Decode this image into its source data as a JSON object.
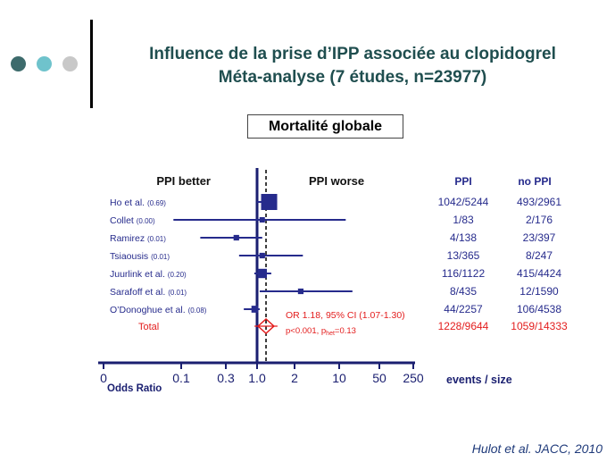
{
  "header": {
    "title_line1": "Influence de la prise d’IPP associée au clopidogrel",
    "title_line2": "Méta-analyse (7 études, n=23977)",
    "box_label": "Mortalité globale",
    "citation": "Hulot et al. JACC, 2010"
  },
  "decor": {
    "dot_colors": [
      "#3d6b6c",
      "#6fc3cc",
      "#c8c8c8"
    ]
  },
  "colors": {
    "navy": "#262b8c",
    "red": "#e31d1d",
    "dark": "#1a1f70"
  },
  "chart_data": {
    "type": "forest",
    "label_left": "PPI better",
    "label_right": "PPI worse",
    "xlabel": "Odds Ratio",
    "x_ticks": [
      0,
      0.1,
      0.3,
      1.0,
      2,
      10,
      50,
      250
    ],
    "x_tick_labels": [
      "0",
      "0.1",
      "0.3",
      "1.0",
      "2",
      "10",
      "50",
      "250"
    ],
    "reference_line": 1.0,
    "pooled_line": 1.18,
    "columns": {
      "events_header_ppi": "PPI",
      "events_header_noppi": "no PPI",
      "footer": "events / size"
    },
    "studies": [
      {
        "name": "Ho et al.",
        "weight": "(0.69)",
        "or": 1.25,
        "ci_low": 1.0,
        "ci_high": 1.45,
        "ppi": "1042/5244",
        "noppi": "493/2961"
      },
      {
        "name": "Collet",
        "weight": "(0.00)",
        "or": 1.1,
        "ci_low": 0.09,
        "ci_high": 13,
        "ppi": "1/83",
        "noppi": "2/176"
      },
      {
        "name": "Ramirez",
        "weight": "(0.01)",
        "or": 0.45,
        "ci_low": 0.16,
        "ci_high": 1.1,
        "ppi": "4/138",
        "noppi": "23/397"
      },
      {
        "name": "Tsiaousis",
        "weight": "(0.01)",
        "or": 1.1,
        "ci_low": 0.5,
        "ci_high": 2.7,
        "ppi": "13/365",
        "noppi": "8/247"
      },
      {
        "name": "Juurlink et al.",
        "weight": "(0.20)",
        "or": 1.1,
        "ci_low": 0.9,
        "ci_high": 1.3,
        "ppi": "116/1122",
        "noppi": "415/4424"
      },
      {
        "name": "Sarafoff et al.",
        "weight": "(0.01)",
        "or": 2.5,
        "ci_low": 1.05,
        "ci_high": 17,
        "ppi": "8/435",
        "noppi": "12/1590"
      },
      {
        "name": "O’Donoghue et al.",
        "weight": "(0.08)",
        "or": 0.92,
        "ci_low": 0.6,
        "ci_high": 1.05,
        "ppi": "44/2257",
        "noppi": "106/4538"
      }
    ],
    "total": {
      "name": "Total",
      "or": 1.18,
      "ci_low": 1.07,
      "ci_high": 1.3,
      "ppi": "1228/9644",
      "noppi": "1059/14333",
      "annotation": "OR 1.18, 95% CI (1.07-1.30)",
      "p_text": "p<0.001, p",
      "p_sub": "het",
      "p_rest": "=0.13"
    }
  }
}
